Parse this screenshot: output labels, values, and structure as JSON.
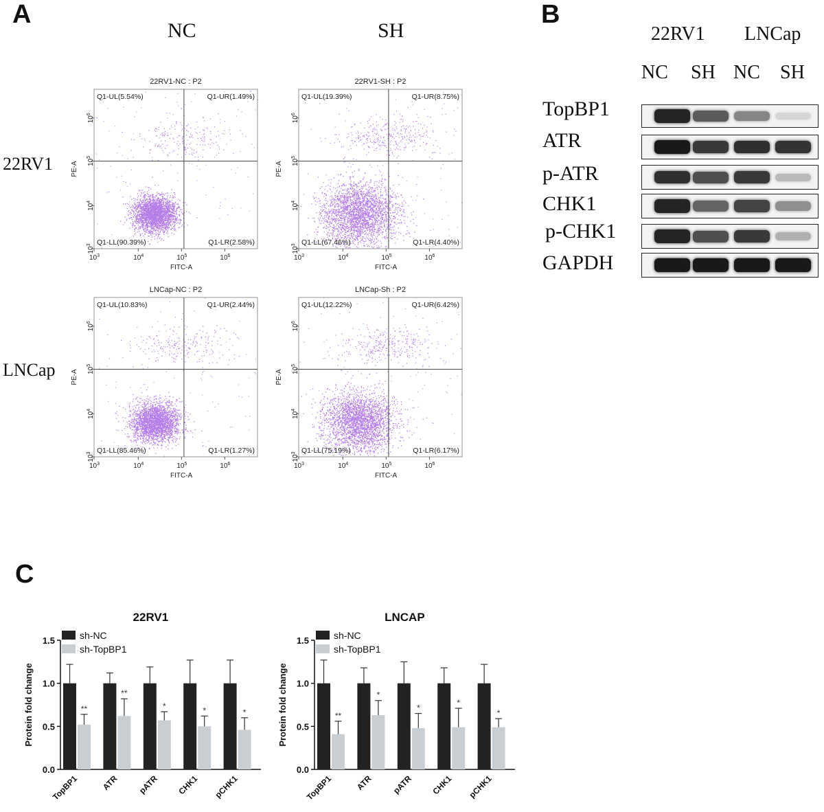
{
  "panel_a": {
    "letter": "A",
    "columns": [
      "NC",
      "SH"
    ],
    "rows": [
      "22RV1",
      "LNCap"
    ],
    "plots": [
      {
        "title": "22RV1-NC : P2",
        "ul": "Q1-UL(5.54%)",
        "ur": "Q1-UR(1.49%)",
        "ll": "Q1-LL(90.39%)",
        "lr": "Q1-LR(2.58%)",
        "spread": 0.55
      },
      {
        "title": "22RV1-SH : P2",
        "ul": "Q1-UL(19.39%)",
        "ur": "Q1-UR(8.75%)",
        "ll": "Q1-LL(67.46%)",
        "lr": "Q1-LR(4.40%)",
        "spread": 0.95
      },
      {
        "title": "LNCap-NC : P2",
        "ul": "Q1-UL(10.83%)",
        "ur": "Q1-UR(2.44%)",
        "ll": "Q1-LL(85.46%)",
        "lr": "Q1-LR(1.27%)",
        "spread": 0.6
      },
      {
        "title": "LNCap-Sh : P2",
        "ul": "Q1-UL(12.22%)",
        "ur": "Q1-UR(6.42%)",
        "ll": "Q1-LL(75.19%)",
        "lr": "Q1-LR(6.17%)",
        "spread": 0.9
      }
    ],
    "xlabel": "FITC-A",
    "ylabel": "PE-A",
    "x_ticks": [
      "10",
      "10",
      "10",
      "10"
    ],
    "x_exps": [
      "3",
      "4",
      "5",
      "6"
    ],
    "y_ticks": [
      "10",
      "10",
      "10",
      "10"
    ],
    "y_exps": [
      "3",
      "4",
      "5",
      "6"
    ],
    "dot_color": "#b57ee6"
  },
  "panel_b": {
    "letter": "B",
    "cell_lines": [
      "22RV1",
      "LNCap"
    ],
    "lanes": [
      "NC",
      "SH",
      "NC",
      "SH"
    ],
    "proteins": [
      {
        "name": "TopBP1",
        "intensity": [
          0.95,
          0.7,
          0.5,
          0.12
        ]
      },
      {
        "name": "ATR",
        "intensity": [
          1.0,
          0.85,
          0.9,
          0.88
        ]
      },
      {
        "name": "p-ATR",
        "intensity": [
          0.9,
          0.75,
          0.85,
          0.25
        ]
      },
      {
        "name": "CHK1",
        "intensity": [
          0.95,
          0.65,
          0.8,
          0.45
        ]
      },
      {
        "name": "p-CHK1",
        "intensity": [
          0.95,
          0.75,
          0.85,
          0.3
        ]
      },
      {
        "name": "GAPDH",
        "intensity": [
          1.0,
          1.0,
          1.0,
          1.0
        ]
      }
    ]
  },
  "panel_c": {
    "letter": "C",
    "chart_data": [
      {
        "type": "bar",
        "title": "22RV1",
        "ylabel": "Protein fold change",
        "ylim": [
          0,
          1.5
        ],
        "yticks": [
          "0.0",
          "0.5",
          "1.0",
          "1.5"
        ],
        "categories": [
          "TopBP1",
          "ATR",
          "pATR",
          "CHK1",
          "pCHK1"
        ],
        "legend_placement": "top-left",
        "series": [
          {
            "name": "sh-NC",
            "color": "#222222",
            "values": [
              1.0,
              1.0,
              1.0,
              1.0,
              1.0
            ],
            "errors": [
              0.22,
              0.12,
              0.19,
              0.27,
              0.27
            ]
          },
          {
            "name": "sh-TopBP1",
            "color": "#c9ced3",
            "values": [
              0.52,
              0.62,
              0.57,
              0.5,
              0.46
            ],
            "errors": [
              0.12,
              0.2,
              0.1,
              0.12,
              0.14
            ]
          }
        ],
        "significance": [
          "**",
          "**",
          "*",
          "*",
          "*"
        ]
      },
      {
        "type": "bar",
        "title": "LNCAP",
        "ylabel": "Protein fold change",
        "ylim": [
          0,
          1.5
        ],
        "yticks": [
          "0.0",
          "0.5",
          "1.0",
          "1.5"
        ],
        "categories": [
          "TopBP1",
          "ATR",
          "pATR",
          "CHK1",
          "pCHK1"
        ],
        "legend_placement": "top-left",
        "series": [
          {
            "name": "sh-NC",
            "color": "#222222",
            "values": [
              1.0,
              1.0,
              1.0,
              1.0,
              1.0
            ],
            "errors": [
              0.27,
              0.18,
              0.25,
              0.18,
              0.22
            ]
          },
          {
            "name": "sh-TopBP1",
            "color": "#c9ced3",
            "values": [
              0.41,
              0.63,
              0.48,
              0.49,
              0.49
            ],
            "errors": [
              0.15,
              0.17,
              0.17,
              0.22,
              0.1
            ]
          }
        ],
        "significance": [
          "**",
          "*",
          "*",
          "*",
          "*"
        ]
      }
    ]
  }
}
